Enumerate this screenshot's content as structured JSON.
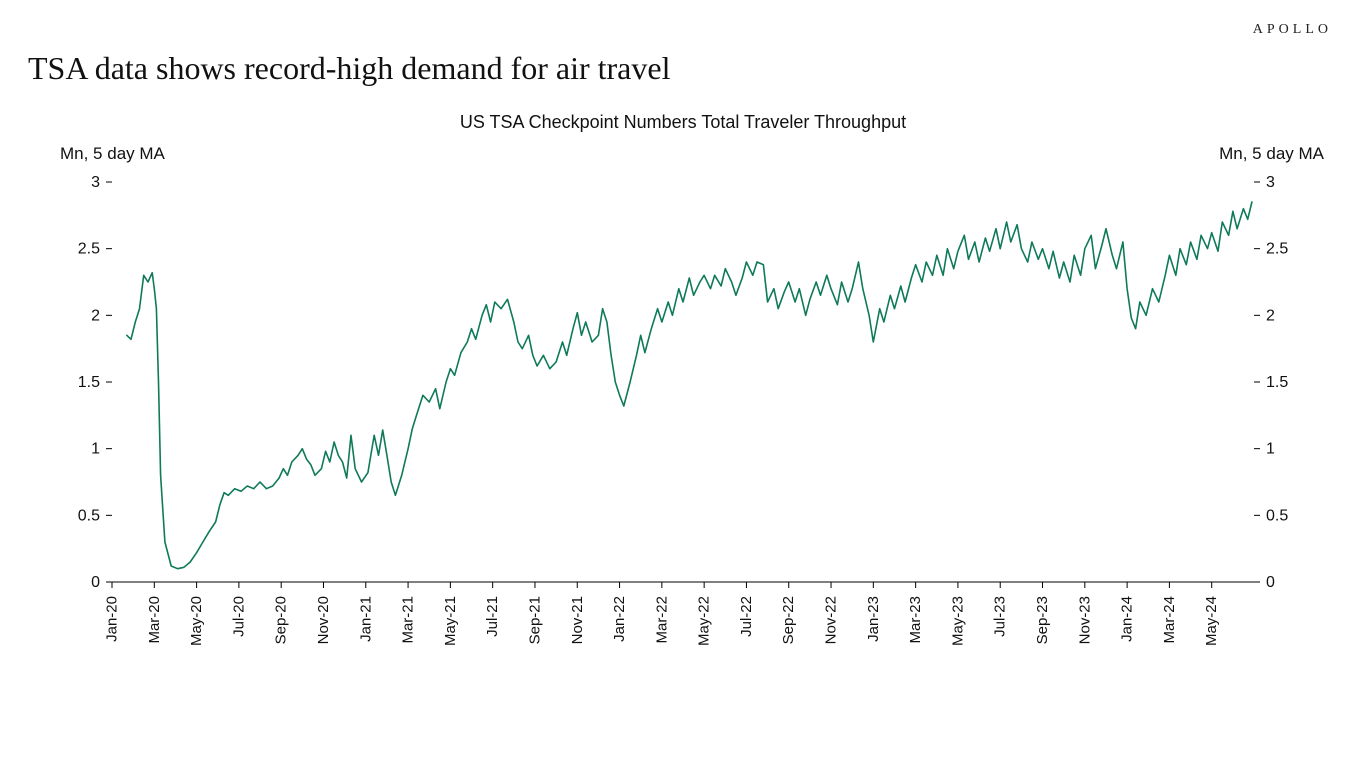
{
  "brand": "APOLLO",
  "headline": "TSA data shows record-high demand for air travel",
  "subtitle": "US TSA Checkpoint Numbers Total Traveler Throughput",
  "y_label_left": "Mn, 5 day MA",
  "y_label_right": "Mn, 5 day MA",
  "chart": {
    "type": "line",
    "background_color": "#ffffff",
    "line_color": "#0f7a5a",
    "line_width": 1.6,
    "axis_color": "#000000",
    "headline_fontsize": 32,
    "subtitle_fontsize": 18,
    "ylabel_fontsize": 17,
    "ytick_fontsize": 16,
    "xtick_fontsize": 15,
    "ylim": [
      0,
      3
    ],
    "ytick_step": 0.5,
    "yticks": [
      "0",
      "0.5",
      "1",
      "1.5",
      "2",
      "2.5",
      "3"
    ],
    "x_labels": [
      "Jan-20",
      "Mar-20",
      "May-20",
      "Jul-20",
      "Sep-20",
      "Nov-20",
      "Jan-21",
      "Mar-21",
      "May-21",
      "Jul-21",
      "Sep-21",
      "Nov-21",
      "Jan-22",
      "Mar-22",
      "May-22",
      "Jul-22",
      "Sep-22",
      "Nov-22",
      "Jan-23",
      "Mar-23",
      "May-23",
      "Jul-23",
      "Sep-23",
      "Nov-23",
      "Jan-24",
      "Mar-24",
      "May-24"
    ],
    "x_range_months": 54,
    "x_start_offset": 0.7,
    "series": [
      {
        "t": 0.7,
        "v": 1.85
      },
      {
        "t": 0.9,
        "v": 1.82
      },
      {
        "t": 1.1,
        "v": 1.95
      },
      {
        "t": 1.3,
        "v": 2.05
      },
      {
        "t": 1.5,
        "v": 2.3
      },
      {
        "t": 1.7,
        "v": 2.25
      },
      {
        "t": 1.9,
        "v": 2.32
      },
      {
        "t": 2.0,
        "v": 2.2
      },
      {
        "t": 2.1,
        "v": 2.05
      },
      {
        "t": 2.2,
        "v": 1.5
      },
      {
        "t": 2.3,
        "v": 0.8
      },
      {
        "t": 2.5,
        "v": 0.3
      },
      {
        "t": 2.8,
        "v": 0.12
      },
      {
        "t": 3.1,
        "v": 0.1
      },
      {
        "t": 3.4,
        "v": 0.11
      },
      {
        "t": 3.7,
        "v": 0.15
      },
      {
        "t": 4.0,
        "v": 0.22
      },
      {
        "t": 4.3,
        "v": 0.3
      },
      {
        "t": 4.6,
        "v": 0.38
      },
      {
        "t": 4.9,
        "v": 0.45
      },
      {
        "t": 5.1,
        "v": 0.58
      },
      {
        "t": 5.3,
        "v": 0.67
      },
      {
        "t": 5.5,
        "v": 0.65
      },
      {
        "t": 5.8,
        "v": 0.7
      },
      {
        "t": 6.1,
        "v": 0.68
      },
      {
        "t": 6.4,
        "v": 0.72
      },
      {
        "t": 6.7,
        "v": 0.7
      },
      {
        "t": 7.0,
        "v": 0.75
      },
      {
        "t": 7.3,
        "v": 0.7
      },
      {
        "t": 7.6,
        "v": 0.72
      },
      {
        "t": 7.9,
        "v": 0.78
      },
      {
        "t": 8.1,
        "v": 0.85
      },
      {
        "t": 8.3,
        "v": 0.8
      },
      {
        "t": 8.5,
        "v": 0.9
      },
      {
        "t": 8.8,
        "v": 0.95
      },
      {
        "t": 9.0,
        "v": 1.0
      },
      {
        "t": 9.2,
        "v": 0.92
      },
      {
        "t": 9.4,
        "v": 0.88
      },
      {
        "t": 9.6,
        "v": 0.8
      },
      {
        "t": 9.9,
        "v": 0.85
      },
      {
        "t": 10.1,
        "v": 0.98
      },
      {
        "t": 10.3,
        "v": 0.9
      },
      {
        "t": 10.5,
        "v": 1.05
      },
      {
        "t": 10.7,
        "v": 0.95
      },
      {
        "t": 10.9,
        "v": 0.9
      },
      {
        "t": 11.1,
        "v": 0.78
      },
      {
        "t": 11.3,
        "v": 1.1
      },
      {
        "t": 11.5,
        "v": 0.85
      },
      {
        "t": 11.8,
        "v": 0.75
      },
      {
        "t": 12.1,
        "v": 0.82
      },
      {
        "t": 12.4,
        "v": 1.1
      },
      {
        "t": 12.6,
        "v": 0.95
      },
      {
        "t": 12.8,
        "v": 1.14
      },
      {
        "t": 13.0,
        "v": 0.95
      },
      {
        "t": 13.2,
        "v": 0.75
      },
      {
        "t": 13.4,
        "v": 0.65
      },
      {
        "t": 13.7,
        "v": 0.8
      },
      {
        "t": 14.0,
        "v": 1.0
      },
      {
        "t": 14.2,
        "v": 1.15
      },
      {
        "t": 14.4,
        "v": 1.25
      },
      {
        "t": 14.7,
        "v": 1.4
      },
      {
        "t": 15.0,
        "v": 1.35
      },
      {
        "t": 15.3,
        "v": 1.45
      },
      {
        "t": 15.5,
        "v": 1.3
      },
      {
        "t": 15.8,
        "v": 1.5
      },
      {
        "t": 16.0,
        "v": 1.6
      },
      {
        "t": 16.2,
        "v": 1.55
      },
      {
        "t": 16.5,
        "v": 1.72
      },
      {
        "t": 16.8,
        "v": 1.8
      },
      {
        "t": 17.0,
        "v": 1.9
      },
      {
        "t": 17.2,
        "v": 1.82
      },
      {
        "t": 17.5,
        "v": 2.0
      },
      {
        "t": 17.7,
        "v": 2.08
      },
      {
        "t": 17.9,
        "v": 1.95
      },
      {
        "t": 18.1,
        "v": 2.1
      },
      {
        "t": 18.4,
        "v": 2.05
      },
      {
        "t": 18.7,
        "v": 2.12
      },
      {
        "t": 19.0,
        "v": 1.95
      },
      {
        "t": 19.2,
        "v": 1.8
      },
      {
        "t": 19.4,
        "v": 1.75
      },
      {
        "t": 19.7,
        "v": 1.85
      },
      {
        "t": 19.9,
        "v": 1.7
      },
      {
        "t": 20.1,
        "v": 1.62
      },
      {
        "t": 20.4,
        "v": 1.7
      },
      {
        "t": 20.7,
        "v": 1.6
      },
      {
        "t": 21.0,
        "v": 1.65
      },
      {
        "t": 21.3,
        "v": 1.8
      },
      {
        "t": 21.5,
        "v": 1.7
      },
      {
        "t": 21.8,
        "v": 1.9
      },
      {
        "t": 22.0,
        "v": 2.02
      },
      {
        "t": 22.2,
        "v": 1.85
      },
      {
        "t": 22.4,
        "v": 1.95
      },
      {
        "t": 22.7,
        "v": 1.8
      },
      {
        "t": 23.0,
        "v": 1.85
      },
      {
        "t": 23.2,
        "v": 2.05
      },
      {
        "t": 23.4,
        "v": 1.95
      },
      {
        "t": 23.6,
        "v": 1.7
      },
      {
        "t": 23.8,
        "v": 1.5
      },
      {
        "t": 24.0,
        "v": 1.4
      },
      {
        "t": 24.2,
        "v": 1.32
      },
      {
        "t": 24.5,
        "v": 1.5
      },
      {
        "t": 24.8,
        "v": 1.7
      },
      {
        "t": 25.0,
        "v": 1.85
      },
      {
        "t": 25.2,
        "v": 1.72
      },
      {
        "t": 25.5,
        "v": 1.9
      },
      {
        "t": 25.8,
        "v": 2.05
      },
      {
        "t": 26.0,
        "v": 1.95
      },
      {
        "t": 26.3,
        "v": 2.1
      },
      {
        "t": 26.5,
        "v": 2.0
      },
      {
        "t": 26.8,
        "v": 2.2
      },
      {
        "t": 27.0,
        "v": 2.1
      },
      {
        "t": 27.3,
        "v": 2.28
      },
      {
        "t": 27.5,
        "v": 2.15
      },
      {
        "t": 27.8,
        "v": 2.25
      },
      {
        "t": 28.0,
        "v": 2.3
      },
      {
        "t": 28.3,
        "v": 2.2
      },
      {
        "t": 28.5,
        "v": 2.3
      },
      {
        "t": 28.8,
        "v": 2.22
      },
      {
        "t": 29.0,
        "v": 2.35
      },
      {
        "t": 29.3,
        "v": 2.25
      },
      {
        "t": 29.5,
        "v": 2.15
      },
      {
        "t": 29.8,
        "v": 2.28
      },
      {
        "t": 30.0,
        "v": 2.4
      },
      {
        "t": 30.3,
        "v": 2.3
      },
      {
        "t": 30.5,
        "v": 2.4
      },
      {
        "t": 30.8,
        "v": 2.38
      },
      {
        "t": 31.0,
        "v": 2.1
      },
      {
        "t": 31.3,
        "v": 2.2
      },
      {
        "t": 31.5,
        "v": 2.05
      },
      {
        "t": 31.8,
        "v": 2.18
      },
      {
        "t": 32.0,
        "v": 2.25
      },
      {
        "t": 32.3,
        "v": 2.1
      },
      {
        "t": 32.5,
        "v": 2.2
      },
      {
        "t": 32.8,
        "v": 2.0
      },
      {
        "t": 33.0,
        "v": 2.12
      },
      {
        "t": 33.3,
        "v": 2.25
      },
      {
        "t": 33.5,
        "v": 2.15
      },
      {
        "t": 33.8,
        "v": 2.3
      },
      {
        "t": 34.0,
        "v": 2.2
      },
      {
        "t": 34.3,
        "v": 2.08
      },
      {
        "t": 34.5,
        "v": 2.25
      },
      {
        "t": 34.8,
        "v": 2.1
      },
      {
        "t": 35.0,
        "v": 2.2
      },
      {
        "t": 35.3,
        "v": 2.4
      },
      {
        "t": 35.5,
        "v": 2.2
      },
      {
        "t": 35.8,
        "v": 2.0
      },
      {
        "t": 36.0,
        "v": 1.8
      },
      {
        "t": 36.3,
        "v": 2.05
      },
      {
        "t": 36.5,
        "v": 1.95
      },
      {
        "t": 36.8,
        "v": 2.15
      },
      {
        "t": 37.0,
        "v": 2.05
      },
      {
        "t": 37.3,
        "v": 2.22
      },
      {
        "t": 37.5,
        "v": 2.1
      },
      {
        "t": 37.8,
        "v": 2.28
      },
      {
        "t": 38.0,
        "v": 2.38
      },
      {
        "t": 38.3,
        "v": 2.25
      },
      {
        "t": 38.5,
        "v": 2.4
      },
      {
        "t": 38.8,
        "v": 2.3
      },
      {
        "t": 39.0,
        "v": 2.45
      },
      {
        "t": 39.3,
        "v": 2.3
      },
      {
        "t": 39.5,
        "v": 2.5
      },
      {
        "t": 39.8,
        "v": 2.35
      },
      {
        "t": 40.0,
        "v": 2.48
      },
      {
        "t": 40.3,
        "v": 2.6
      },
      {
        "t": 40.5,
        "v": 2.42
      },
      {
        "t": 40.8,
        "v": 2.55
      },
      {
        "t": 41.0,
        "v": 2.4
      },
      {
        "t": 41.3,
        "v": 2.58
      },
      {
        "t": 41.5,
        "v": 2.48
      },
      {
        "t": 41.8,
        "v": 2.65
      },
      {
        "t": 42.0,
        "v": 2.5
      },
      {
        "t": 42.3,
        "v": 2.7
      },
      {
        "t": 42.5,
        "v": 2.55
      },
      {
        "t": 42.8,
        "v": 2.68
      },
      {
        "t": 43.0,
        "v": 2.5
      },
      {
        "t": 43.3,
        "v": 2.4
      },
      {
        "t": 43.5,
        "v": 2.55
      },
      {
        "t": 43.8,
        "v": 2.42
      },
      {
        "t": 44.0,
        "v": 2.5
      },
      {
        "t": 44.3,
        "v": 2.35
      },
      {
        "t": 44.5,
        "v": 2.48
      },
      {
        "t": 44.8,
        "v": 2.28
      },
      {
        "t": 45.0,
        "v": 2.4
      },
      {
        "t": 45.3,
        "v": 2.25
      },
      {
        "t": 45.5,
        "v": 2.45
      },
      {
        "t": 45.8,
        "v": 2.3
      },
      {
        "t": 46.0,
        "v": 2.5
      },
      {
        "t": 46.3,
        "v": 2.6
      },
      {
        "t": 46.5,
        "v": 2.35
      },
      {
        "t": 46.8,
        "v": 2.52
      },
      {
        "t": 47.0,
        "v": 2.65
      },
      {
        "t": 47.3,
        "v": 2.45
      },
      {
        "t": 47.5,
        "v": 2.35
      },
      {
        "t": 47.8,
        "v": 2.55
      },
      {
        "t": 48.0,
        "v": 2.2
      },
      {
        "t": 48.2,
        "v": 1.98
      },
      {
        "t": 48.4,
        "v": 1.9
      },
      {
        "t": 48.6,
        "v": 2.1
      },
      {
        "t": 48.9,
        "v": 2.0
      },
      {
        "t": 49.2,
        "v": 2.2
      },
      {
        "t": 49.5,
        "v": 2.1
      },
      {
        "t": 49.8,
        "v": 2.3
      },
      {
        "t": 50.0,
        "v": 2.45
      },
      {
        "t": 50.3,
        "v": 2.3
      },
      {
        "t": 50.5,
        "v": 2.5
      },
      {
        "t": 50.8,
        "v": 2.38
      },
      {
        "t": 51.0,
        "v": 2.55
      },
      {
        "t": 51.3,
        "v": 2.42
      },
      {
        "t": 51.5,
        "v": 2.6
      },
      {
        "t": 51.8,
        "v": 2.5
      },
      {
        "t": 52.0,
        "v": 2.62
      },
      {
        "t": 52.3,
        "v": 2.48
      },
      {
        "t": 52.5,
        "v": 2.7
      },
      {
        "t": 52.8,
        "v": 2.6
      },
      {
        "t": 53.0,
        "v": 2.78
      },
      {
        "t": 53.2,
        "v": 2.65
      },
      {
        "t": 53.5,
        "v": 2.8
      },
      {
        "t": 53.7,
        "v": 2.72
      },
      {
        "t": 53.9,
        "v": 2.85
      }
    ]
  }
}
